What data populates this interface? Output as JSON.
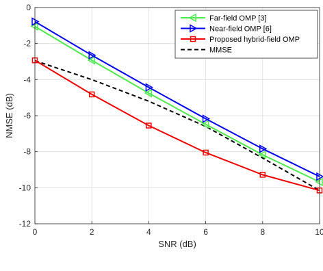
{
  "chart_data": {
    "type": "line",
    "title": "",
    "xlabel": "SNR (dB)",
    "ylabel": "NMSE (dB)",
    "xlim": [
      0,
      10
    ],
    "ylim": [
      -12,
      0
    ],
    "xticks": [
      0,
      2,
      4,
      6,
      8,
      10
    ],
    "yticks": [
      -12,
      -10,
      -8,
      -6,
      -4,
      -2,
      0
    ],
    "xtick_labels": [
      "0",
      "2",
      "4",
      "6",
      "8",
      "10"
    ],
    "ytick_labels": [
      "-12",
      "-10",
      "-8",
      "-6",
      "-4",
      "-2",
      "0"
    ],
    "grid": true,
    "legend_position": "top-right",
    "x": [
      0,
      2,
      4,
      6,
      8,
      10
    ],
    "series": [
      {
        "name": "Far-field OMP [3]",
        "color": "#4cea4c",
        "marker": "triangle-left",
        "values": [
          -1.05,
          -2.93,
          -4.75,
          -6.48,
          -8.17,
          -9.68
        ]
      },
      {
        "name": "Near-field OMP [6]",
        "color": "#0000f0",
        "marker": "triangle-right",
        "values": [
          -0.78,
          -2.65,
          -4.43,
          -6.17,
          -7.84,
          -9.38
        ]
      },
      {
        "name": "Proposed hybrid-field OMP",
        "color": "#f00000",
        "marker": "square",
        "values": [
          -2.93,
          -4.82,
          -6.55,
          -8.05,
          -9.28,
          -10.15
        ]
      },
      {
        "name": "MMSE",
        "color": "#000000",
        "marker": "none",
        "dash": "dashed",
        "values": [
          -2.95,
          -4.0,
          -5.2,
          -6.6,
          -8.35,
          -10.15
        ]
      }
    ]
  }
}
